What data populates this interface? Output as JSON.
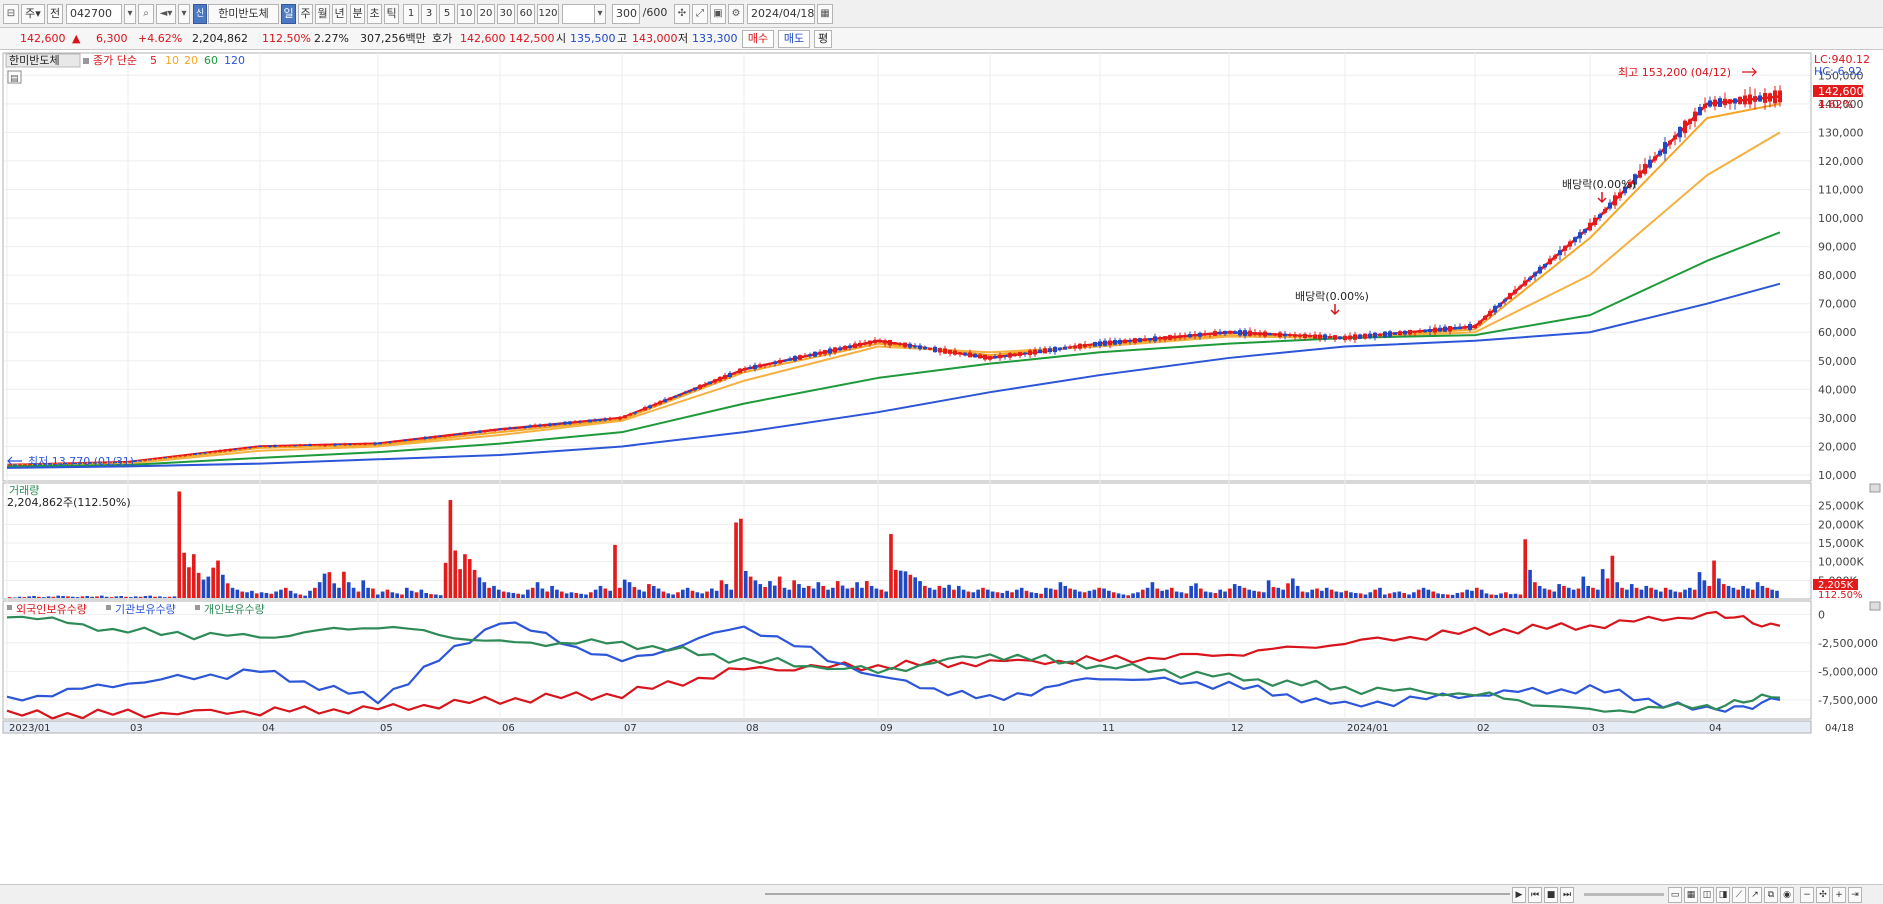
{
  "toolbar": {
    "period_type": "주",
    "type2": "전",
    "code": "042700",
    "name": "한미반도체",
    "name_badge": "신",
    "periods": [
      "일",
      "주",
      "월",
      "년",
      "분",
      "초",
      "틱"
    ],
    "active_period": "일",
    "intervals": [
      "1",
      "3",
      "5",
      "10",
      "20",
      "30",
      "60",
      "120"
    ],
    "count": "300",
    "count_max": "/600",
    "date": "2024/04/18"
  },
  "quote": {
    "price": "142,600",
    "change_arrow": "▲",
    "change": "6,300",
    "change_pct": "+4.62%",
    "volume": "2,204,862",
    "vol_ratio": "112.50%",
    "turnover": "2.27%",
    "amount": "307,256백만",
    "ask_label": "호가",
    "ask1": "142,600",
    "ask2": "142,500",
    "open_label": "시",
    "open": "135,500",
    "high_label": "고",
    "high": "143,000",
    "low_label": "저",
    "low": "133,300",
    "buy_button": "매수",
    "sell_button": "매도",
    "eval_button": "평"
  },
  "price_panel": {
    "title": "한미반도체",
    "ma_label": "종가 단순",
    "ma_periods": [
      {
        "label": "5",
        "color": "#e8141c"
      },
      {
        "label": "10",
        "color": "#f5a623"
      },
      {
        "label": "20",
        "color": "#f5a623"
      },
      {
        "label": "60",
        "color": "#1e9a3a"
      },
      {
        "label": "120",
        "color": "#2c55d8"
      }
    ],
    "lc": "LC:940.12",
    "hc": "HC:-6.92",
    "last_price_tag": "142,600",
    "last_pct_tag": "4.62%",
    "high_note": "최고 153,200 (04/12)",
    "low_note": "최저 13,770 (01/31)",
    "div_note1": "배당락(0.00%)",
    "div_note2": "배당락(0.00%)",
    "y_ticks": [
      "150,000",
      "140,000",
      "130,000",
      "120,000",
      "110,000",
      "100,000",
      "90,000",
      "80,000",
      "70,000",
      "60,000",
      "50,000",
      "40,000",
      "30,000",
      "20,000",
      "10,000"
    ]
  },
  "volume_panel": {
    "title": "거래량",
    "value": "2,204,862주(112.50%)",
    "y_ticks": [
      "25,000K",
      "20,000K",
      "15,000K",
      "10,000K",
      "5,000K"
    ],
    "last_tag": "2,205K",
    "last_pct": "112.50%"
  },
  "holdings_panel": {
    "series": [
      {
        "name": "외국인보유수량",
        "color": "#d8141c"
      },
      {
        "name": "기관보유수량",
        "color": "#2c55d8"
      },
      {
        "name": "개인보유수량",
        "color": "#2e8b57"
      }
    ],
    "y_ticks": [
      "0",
      "-2,500,000",
      "-5,000,000",
      "-7,500,000"
    ]
  },
  "x_axis": [
    "2023/01",
    "03",
    "04",
    "05",
    "06",
    "07",
    "08",
    "09",
    "10",
    "11",
    "12",
    "2024/01",
    "02",
    "03",
    "04",
    "04/18"
  ],
  "colors": {
    "up": "#d8141c",
    "down": "#1f48c6",
    "ma5": "#e8141c",
    "ma10": "#f5a623",
    "ma60": "#1e9a3a",
    "ma120": "#2c55d8"
  },
  "chart_data": [
    {
      "type": "line",
      "title": "한미반도체",
      "x": [
        "2023/01",
        "2023/03",
        "2023/04",
        "2023/05",
        "2023/06",
        "2023/07",
        "2023/08",
        "2023/09",
        "2023/10",
        "2023/11",
        "2023/12",
        "2024/01",
        "2024/02",
        "2024/03",
        "2024/04",
        "2024/04/18"
      ],
      "ylim": [
        10000,
        155000
      ],
      "series": [
        {
          "name": "5",
          "values": [
            13500,
            14500,
            20000,
            21000,
            26000,
            30000,
            47000,
            57000,
            51000,
            56000,
            60000,
            58000,
            62000,
            97000,
            140000,
            142600
          ]
        },
        {
          "name": "10",
          "values": [
            13400,
            14300,
            19500,
            20500,
            25000,
            29500,
            46000,
            56000,
            52000,
            55500,
            59000,
            58000,
            61000,
            93000,
            135000,
            140000
          ]
        },
        {
          "name": "20",
          "values": [
            13300,
            14000,
            18500,
            20000,
            24000,
            29000,
            43000,
            55000,
            53000,
            55000,
            58500,
            58000,
            60000,
            80000,
            115000,
            130000
          ]
        },
        {
          "name": "60",
          "values": [
            13000,
            13500,
            16000,
            18000,
            21000,
            25000,
            35000,
            44000,
            49000,
            53000,
            56000,
            58000,
            59000,
            66000,
            85000,
            95000
          ]
        },
        {
          "name": "120",
          "values": [
            12500,
            13000,
            14000,
            15500,
            17000,
            20000,
            25000,
            32000,
            39000,
            45000,
            51000,
            55000,
            57000,
            60000,
            70000,
            77000
          ]
        }
      ]
    },
    {
      "type": "bar",
      "title": "거래량",
      "ylim": [
        0,
        30000
      ],
      "values_k": [
        500,
        400,
        600,
        500,
        700,
        800,
        600,
        500,
        700,
        600,
        900,
        800,
        700,
        600,
        500,
        700,
        800,
        600,
        700,
        900,
        600,
        500,
        700,
        800,
        600,
        500,
        700,
        600,
        800,
        900,
        600,
        700,
        500,
        600,
        700,
        28800,
        12400,
        8500,
        12000,
        7000,
        5200,
        6000,
        8400,
        10300,
        6500,
        4200,
        3000,
        2500,
        2000,
        1800,
        2200,
        1500,
        1800,
        1600,
        1400,
        2000,
        2500,
        3000,
        2200,
        1500,
        1200,
        900,
        2200,
        3000,
        4500,
        6800,
        7200,
        4200,
        3000,
        7300,
        4500,
        3000,
        2000,
        5000,
        3000,
        2800,
        1200,
        2000,
        2500,
        1800,
        1500,
        1200,
        3000,
        2200,
        1800,
        2500,
        1600,
        1300,
        1200,
        1000,
        9700,
        26500,
        13000,
        8000,
        12000,
        10700,
        7800,
        5800,
        4500,
        3000,
        3500,
        2500,
        2000,
        1800,
        1600,
        1400,
        1200,
        2500,
        3000,
        4500,
        2800,
        2000,
        3500,
        2500,
        2000,
        1500,
        1800,
        1600,
        1400,
        1200,
        1800,
        2500,
        3500,
        2800,
        2200,
        14500,
        3000,
        5200,
        4500,
        3200,
        2500,
        2000,
        4000,
        3500,
        2800,
        2000,
        1500,
        1200,
        1800,
        2500,
        3000,
        2200,
        1800,
        1500,
        2000,
        2800,
        2200,
        5000,
        4000,
        2500,
        20500,
        21500,
        7500,
        6000,
        5000,
        4000,
        3200,
        4800,
        3600,
        6000,
        3000,
        2500,
        5000,
        4000,
        3000,
        3500,
        2800,
        4500,
        3500,
        2500,
        3000,
        4800,
        3600,
        2800,
        3000,
        4500,
        3000,
        4800,
        3500,
        2800,
        2500,
        2000,
        17400,
        7800,
        7600,
        7400,
        6500,
        5800,
        4800,
        3500,
        3000,
        2500,
        3500,
        3000,
        3800,
        2500,
        3500,
        2500,
        2000,
        1800,
        2500,
        3000,
        2500,
        2000,
        1800,
        1600,
        2200,
        1800,
        2500,
        3000,
        2200,
        1800,
        1600,
        1400,
        3000,
        2800,
        2500,
        4500,
        3500,
        2800,
        2500,
        2000,
        1800,
        2200,
        2500,
        3000,
        2800,
        2200,
        1800,
        1500,
        1200,
        1000,
        1500,
        1800,
        2500,
        3000,
        4500,
        2800,
        2200,
        2500,
        3000,
        2000,
        1800,
        1500,
        3500,
        4200,
        2800,
        2000,
        1800,
        1600,
        2500,
        2000,
        2800,
        4000,
        3500,
        3000,
        2500,
        2200,
        2000,
        1800,
        5000,
        3200,
        3000,
        2500,
        4200,
        5500,
        3500,
        2000,
        1800,
        2500,
        2800,
        2200,
        3000,
        2500,
        2000,
        1800,
        2200,
        1800,
        1600,
        1500,
        1200,
        1800,
        2500,
        3000,
        1200,
        1500,
        1800,
        2000,
        1600,
        1200,
        1800,
        2500,
        3000,
        2500,
        2000,
        1500,
        1300,
        1200,
        1100,
        1600,
        1800,
        2500,
        2200,
        3000,
        2500,
        1500,
        1200,
        1100,
        1500,
        1800,
        1300,
        1400,
        1200,
        16000,
        7800,
        4500,
        3500,
        2800,
        2500,
        2000,
        4000,
        3500,
        3000,
        2500,
        2800,
        6000,
        3500,
        3000,
        2500,
        8000,
        5500,
        11600,
        4500,
        3000,
        2500,
        4000,
        3000,
        2500,
        3500,
        3000,
        2500,
        2000,
        3000,
        2500,
        2000,
        1800,
        2500,
        3000,
        2500,
        7200,
        5000,
        3500,
        10300,
        5500,
        4000,
        3500,
        3000,
        2500,
        3500,
        2800,
        2500,
        4500,
        3500,
        3000,
        2500,
        2200
      ]
    },
    {
      "type": "line",
      "title": "외국인보유수량 / 기관보유수량 / 개인보유수량",
      "ylim": [
        -9000000,
        1000000
      ],
      "series": [
        {
          "name": "외국인보유수량",
          "values": [
            -8800000,
            -8700000,
            -8500000,
            -8300000,
            -7500000,
            -7000000,
            -4800000,
            -4500000,
            -4200000,
            -4000000,
            -3500000,
            -2500000,
            -1500000,
            -1000000,
            0,
            -1000000
          ]
        },
        {
          "name": "기관보유수량",
          "values": [
            -7500000,
            -6000000,
            -5000000,
            -7500000,
            -500000,
            -4200000,
            -1000000,
            -5500000,
            -7500000,
            -5500000,
            -6200000,
            -8000000,
            -7000000,
            -6500000,
            -8500000,
            -7500000
          ]
        },
        {
          "name": "개인보유수량",
          "values": [
            0,
            -1500000,
            -2000000,
            -1000000,
            -2500000,
            -2500000,
            -4000000,
            -5000000,
            -3500000,
            -4500000,
            -5500000,
            -6500000,
            -7000000,
            -8500000,
            -8000000,
            -7300000
          ]
        }
      ]
    }
  ]
}
